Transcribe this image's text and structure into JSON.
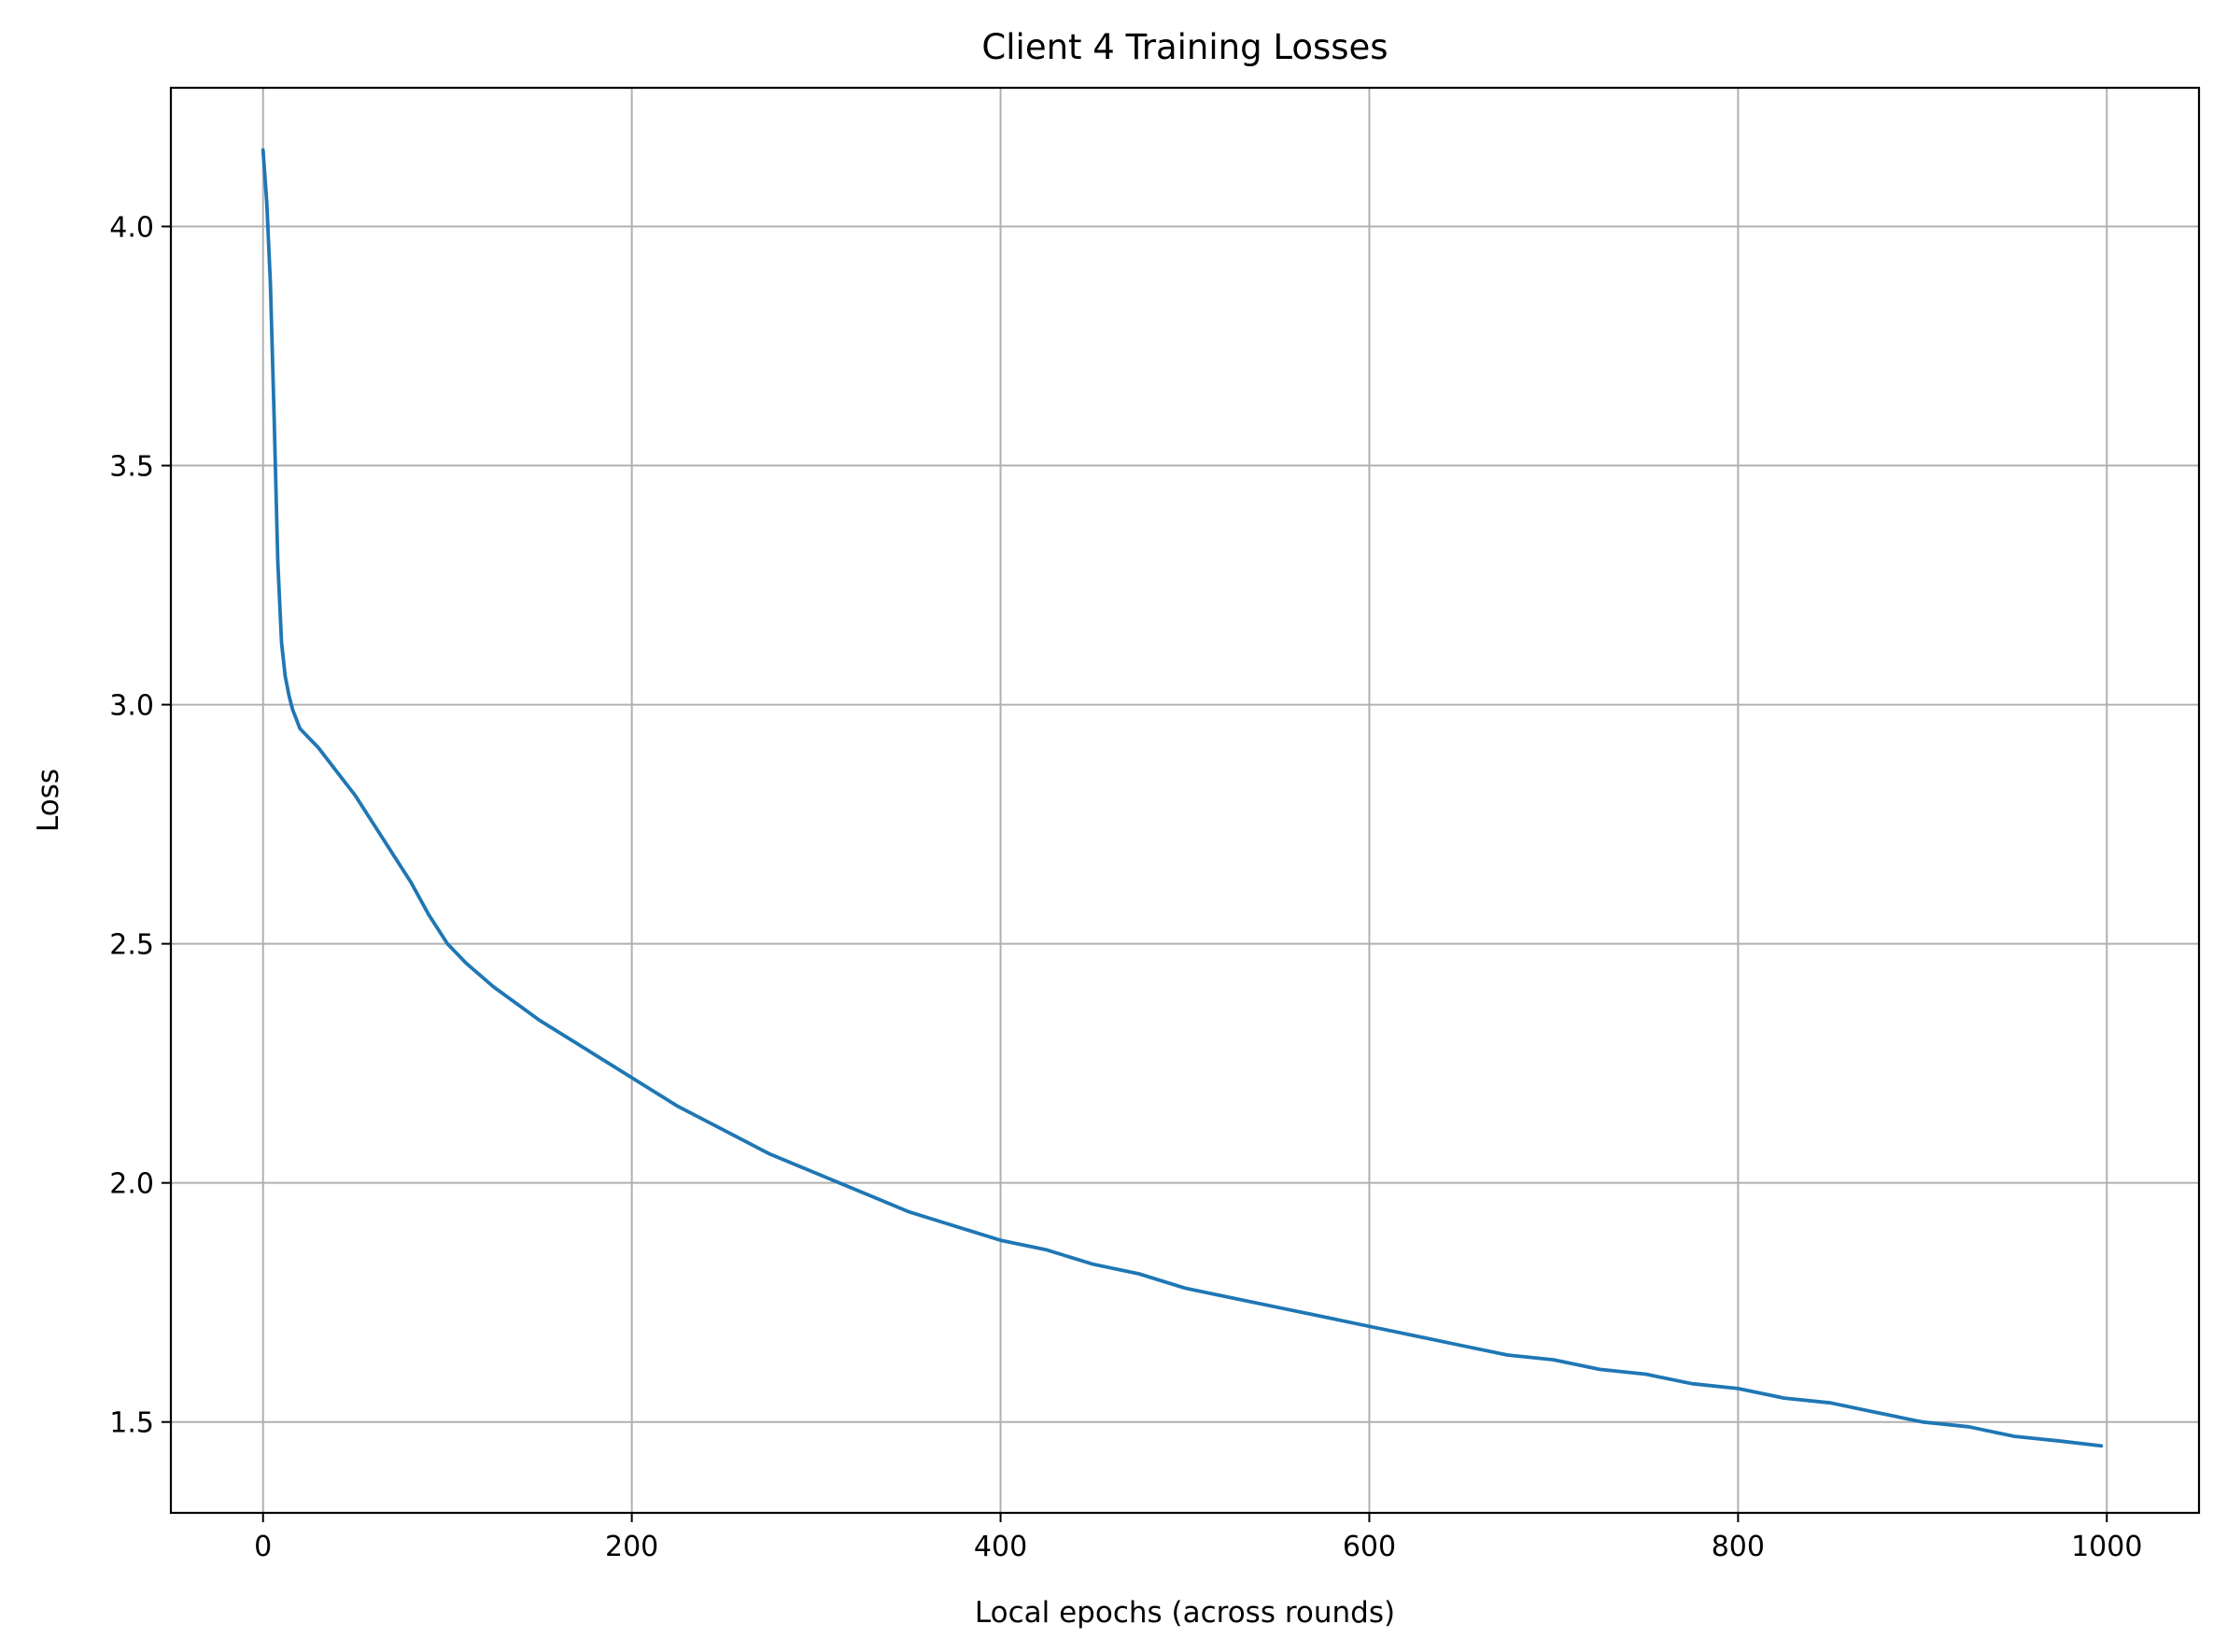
{
  "chart_data": {
    "type": "line",
    "title": "Client 4 Training Losses",
    "xlabel": "Local epochs (across rounds)",
    "ylabel": "Loss",
    "xlim": [
      -50,
      1050
    ],
    "ylim": [
      1.31,
      4.29
    ],
    "xticks": [
      0,
      200,
      400,
      600,
      800,
      1000
    ],
    "xtick_labels": [
      "0",
      "200",
      "400",
      "600",
      "800",
      "1000"
    ],
    "yticks": [
      1.5,
      2.0,
      2.5,
      3.0,
      3.5,
      4.0
    ],
    "ytick_labels": [
      "1.5",
      "2.0",
      "2.5",
      "3.0",
      "3.5",
      "4.0"
    ],
    "grid": true,
    "legend": "none",
    "series": [
      {
        "color": "#1f77b4",
        "x": [
          0,
          2,
          4,
          6,
          8,
          10,
          12,
          14,
          16,
          18,
          20,
          25,
          30,
          40,
          50,
          60,
          70,
          80,
          90,
          100,
          110,
          125,
          150,
          175,
          200,
          225,
          250,
          275,
          300,
          325,
          350,
          375,
          400,
          425,
          450,
          475,
          500,
          525,
          550,
          575,
          600,
          625,
          650,
          675,
          700,
          725,
          750,
          775,
          800,
          825,
          850,
          875,
          900,
          925,
          950,
          975,
          997
        ],
        "y": [
          4.16,
          4.05,
          3.88,
          3.6,
          3.3,
          3.13,
          3.06,
          3.02,
          2.99,
          2.97,
          2.95,
          2.93,
          2.91,
          2.86,
          2.81,
          2.75,
          2.69,
          2.63,
          2.56,
          2.5,
          2.46,
          2.41,
          2.34,
          2.28,
          2.22,
          2.16,
          2.11,
          2.06,
          2.02,
          1.98,
          1.94,
          1.91,
          1.88,
          1.86,
          1.83,
          1.81,
          1.78,
          1.76,
          1.74,
          1.72,
          1.7,
          1.68,
          1.66,
          1.64,
          1.63,
          1.61,
          1.6,
          1.58,
          1.57,
          1.55,
          1.54,
          1.52,
          1.5,
          1.49,
          1.47,
          1.46,
          1.45
        ]
      }
    ]
  }
}
